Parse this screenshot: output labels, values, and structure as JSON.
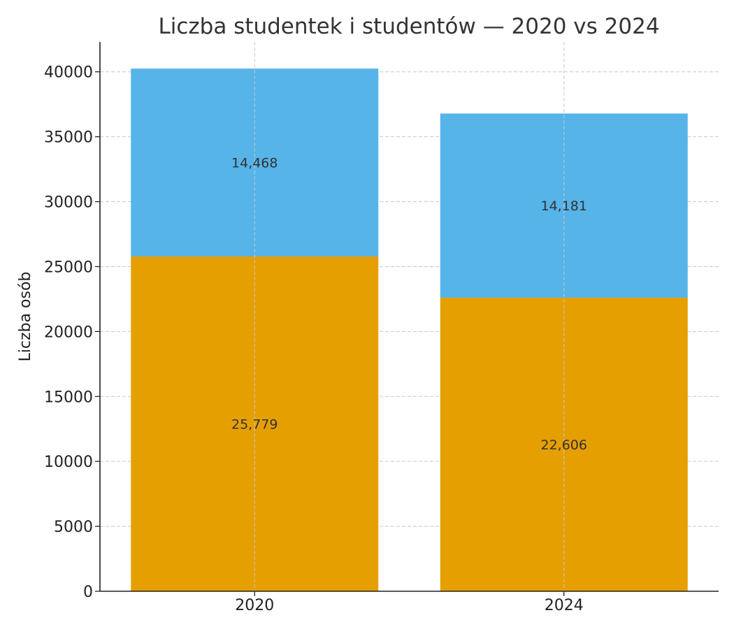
{
  "chart_data": {
    "type": "bar",
    "stacked": true,
    "title": "Liczba studentek i studentów — 2020 vs 2024",
    "xlabel": "",
    "ylabel": "Liczba osób",
    "categories": [
      "2020",
      "2024"
    ],
    "ylim": [
      0,
      42300
    ],
    "yticks": [
      0,
      5000,
      10000,
      15000,
      20000,
      25000,
      30000,
      35000,
      40000
    ],
    "grid": true,
    "series": [
      {
        "values": [
          25779,
          22606
        ],
        "labels": [
          "25,779",
          "22,606"
        ],
        "color": "#E69F00"
      },
      {
        "values": [
          14468,
          14181
        ],
        "labels": [
          "14,468",
          "14,181"
        ],
        "color": "#56B4E9"
      }
    ]
  }
}
